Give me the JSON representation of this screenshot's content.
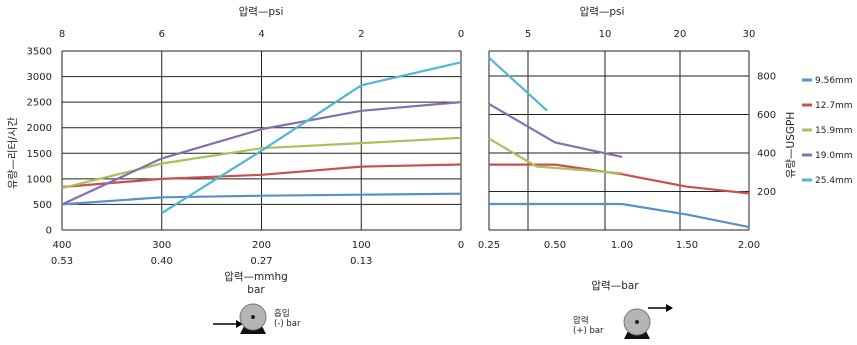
{
  "chart_data": [
    {
      "type": "line",
      "panel": "vacuum",
      "title": "",
      "x_label_bottom": "압력—mmhg",
      "x_label_bottom_2": "bar",
      "x_label_top": "압력—psi",
      "y_label": "유량—리터/시간",
      "xlim": [
        400,
        0
      ],
      "ylim": [
        0,
        3500
      ],
      "x_ticks_bottom": [
        400,
        300,
        200,
        100,
        0
      ],
      "x_ticks_bottom_secondary": [
        "0.53",
        "0.40",
        "0.27",
        "0.13",
        ""
      ],
      "x_ticks_top": [
        8,
        6,
        4,
        2,
        0
      ],
      "y_ticks": [
        0,
        500,
        1000,
        1500,
        2000,
        2500,
        3000,
        3500
      ],
      "grid": true,
      "series": [
        {
          "name": "9.56mm",
          "color": "#5b8fc7",
          "x": [
            400,
            300,
            200,
            100,
            0
          ],
          "y": [
            500,
            640,
            670,
            690,
            710
          ]
        },
        {
          "name": "12.7mm",
          "color": "#c9504f",
          "x": [
            400,
            300,
            200,
            100,
            0
          ],
          "y": [
            840,
            1000,
            1080,
            1240,
            1280
          ]
        },
        {
          "name": "15.9mm",
          "color": "#a8c25a",
          "x": [
            400,
            300,
            200,
            100,
            0
          ],
          "y": [
            820,
            1300,
            1600,
            1700,
            1800
          ]
        },
        {
          "name": "19.0mm",
          "color": "#8a6db1",
          "x": [
            400,
            300,
            200,
            100,
            0
          ],
          "y": [
            500,
            1400,
            1970,
            2330,
            2500
          ]
        },
        {
          "name": "25.4mm",
          "color": "#4fb8cf",
          "x": [
            300,
            200,
            100,
            0
          ],
          "y": [
            330,
            1550,
            2830,
            3280
          ]
        }
      ]
    },
    {
      "type": "line",
      "panel": "pressure",
      "title": "",
      "x_label_bottom": "압력—bar",
      "x_label_top": "압력—psi",
      "y_label": "유량—USGPH",
      "x_ticks_bottom": [
        "0.25",
        "0.50",
        "1.00",
        "1.50",
        "2.00"
      ],
      "x_ticks_top": [
        5,
        10,
        20,
        30
      ],
      "y_ticks": [
        200,
        400,
        600,
        800
      ],
      "ylim": [
        0,
        930
      ],
      "grid": true,
      "series": [
        {
          "name": "9.56mm",
          "color": "#5b8fc7",
          "x": [
            "0.25",
            "0.50",
            "1.00",
            "1.50",
            "2.00"
          ],
          "y": [
            135,
            135,
            135,
            80,
            15
          ]
        },
        {
          "name": "12.7mm",
          "color": "#c9504f",
          "x": [
            "0.25",
            "0.50",
            "1.00",
            "1.50",
            "2.00"
          ],
          "y": [
            340,
            340,
            290,
            225,
            190
          ]
        },
        {
          "name": "15.9mm",
          "color": "#a8c25a",
          "x": [
            "0.25",
            "0.43",
            "1.00"
          ],
          "y": [
            475,
            330,
            295
          ]
        },
        {
          "name": "19.0mm",
          "color": "#8a6db1",
          "x": [
            "0.25",
            "0.50",
            "1.00"
          ],
          "y": [
            655,
            455,
            380
          ]
        },
        {
          "name": "25.4mm",
          "color": "#4fb8cf",
          "x": [
            "0.25",
            "0.47"
          ],
          "y": [
            895,
            620
          ]
        }
      ]
    }
  ],
  "legend": {
    "placement": "right",
    "items": [
      "9.56mm",
      "12.7mm",
      "15.9mm",
      "19.0mm",
      "25.4mm"
    ]
  },
  "pump_labels": {
    "suction": "흡입",
    "suction_sub": "(-) bar",
    "pressure": "압력",
    "pressure_sub": "(+) bar"
  },
  "colors": {
    "grid": "#222222",
    "pump_body": "#b5b5b5"
  }
}
